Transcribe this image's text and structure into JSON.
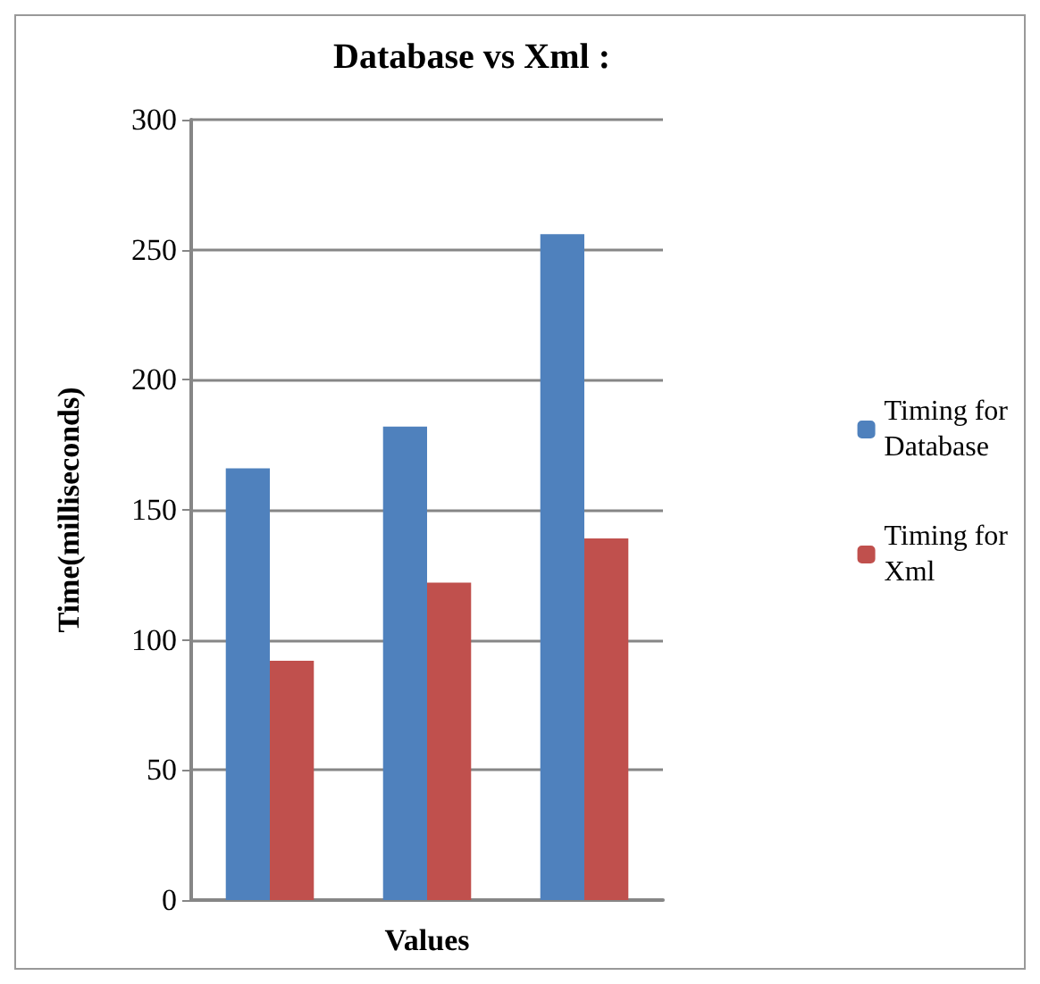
{
  "chart_data": {
    "type": "bar",
    "title": "Database vs Xml :",
    "xlabel": "Values",
    "ylabel": "Time(milliseconds)",
    "categories": [
      null,
      null,
      null
    ],
    "series": [
      {
        "name": "Timing for Database",
        "color": "#4f81bd",
        "values": [
          166,
          182,
          256
        ]
      },
      {
        "name": "Timing for Xml",
        "color": "#c0504d",
        "values": [
          92,
          122,
          139
        ]
      }
    ],
    "ylim": [
      0,
      300
    ],
    "yticks": [
      0,
      50,
      100,
      150,
      200,
      250,
      300
    ],
    "grid": "y",
    "legend": "right"
  }
}
